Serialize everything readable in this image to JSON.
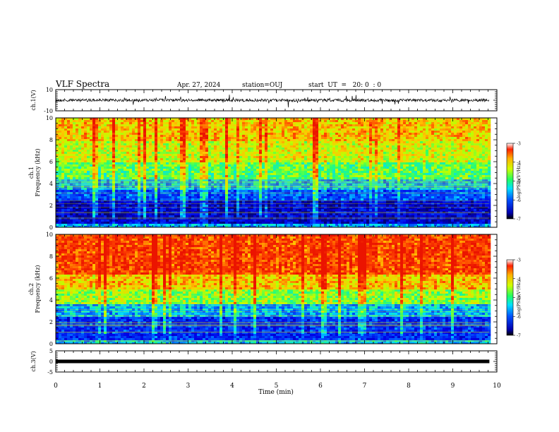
{
  "header": {
    "title": "VLF Spectra",
    "date": "Apr. 27, 2024",
    "station": "station=OUJ",
    "start": "start  UT  =   20: 0  : 0"
  },
  "chart_data": [
    {
      "type": "line",
      "name": "waveform-ch1",
      "ylabel": "ch.1(V)",
      "ylim": [
        -10,
        10
      ],
      "yticks": [
        "10",
        "-10"
      ],
      "baseline": 0,
      "color": "#000000"
    },
    {
      "type": "heatmap",
      "name": "spectrogram-ch1",
      "ylabel": "ch.1",
      "ylabel2": "Frequency (kHz)",
      "ylim": [
        0,
        10
      ],
      "yticks": [
        "0",
        "2",
        "4",
        "6",
        "8",
        "10"
      ],
      "colorbar": {
        "label": "log(PSD)(V²/Hz)",
        "range": [
          -7,
          -3
        ],
        "ticks": [
          "-3",
          "-4",
          "-5",
          "-6",
          "-7"
        ]
      },
      "bands": [
        {
          "from": 0,
          "to": 0.5,
          "level": -5.6
        },
        {
          "from": 0.5,
          "to": 2.5,
          "level": -6.6
        },
        {
          "from": 2.5,
          "to": 3.5,
          "level": -6.0
        },
        {
          "from": 3.5,
          "to": 4.5,
          "level": -5.5
        },
        {
          "from": 4.5,
          "to": 6.0,
          "level": -4.8
        },
        {
          "from": 6.0,
          "to": 8.0,
          "level": -4.3
        },
        {
          "from": 8.0,
          "to": 10.0,
          "level": -4.0
        }
      ]
    },
    {
      "type": "heatmap",
      "name": "spectrogram-ch2",
      "ylabel": "ch.2",
      "ylabel2": "Frequency (kHz)",
      "ylim": [
        0,
        10
      ],
      "yticks": [
        "0",
        "2",
        "4",
        "6",
        "8",
        "10"
      ],
      "colorbar": {
        "label": "log(PSD)(V²/Hz)",
        "range": [
          -7,
          -3
        ],
        "ticks": [
          "-3",
          "-4",
          "-5",
          "-6",
          "-7"
        ]
      },
      "bands": [
        {
          "from": 0,
          "to": 0.5,
          "level": -5.5
        },
        {
          "from": 0.5,
          "to": 2.5,
          "level": -6.2
        },
        {
          "from": 2.5,
          "to": 3.8,
          "level": -5.6
        },
        {
          "from": 3.8,
          "to": 5.0,
          "level": -4.6
        },
        {
          "from": 5.0,
          "to": 6.5,
          "level": -4.0
        },
        {
          "from": 6.5,
          "to": 10.0,
          "level": -3.4
        }
      ]
    },
    {
      "type": "line",
      "name": "waveform-ch3",
      "ylabel": "ch.3(V)",
      "ylim": [
        -5,
        5
      ],
      "yticks": [
        "5",
        "0",
        "-5"
      ],
      "baseline": 0,
      "color": "#000000"
    }
  ],
  "xaxis": {
    "label": "Time (min)",
    "xlim": [
      0,
      10
    ],
    "ticks": [
      "0",
      "1",
      "2",
      "3",
      "4",
      "5",
      "6",
      "7",
      "8",
      "9",
      "10"
    ],
    "data_end": 9.83
  }
}
